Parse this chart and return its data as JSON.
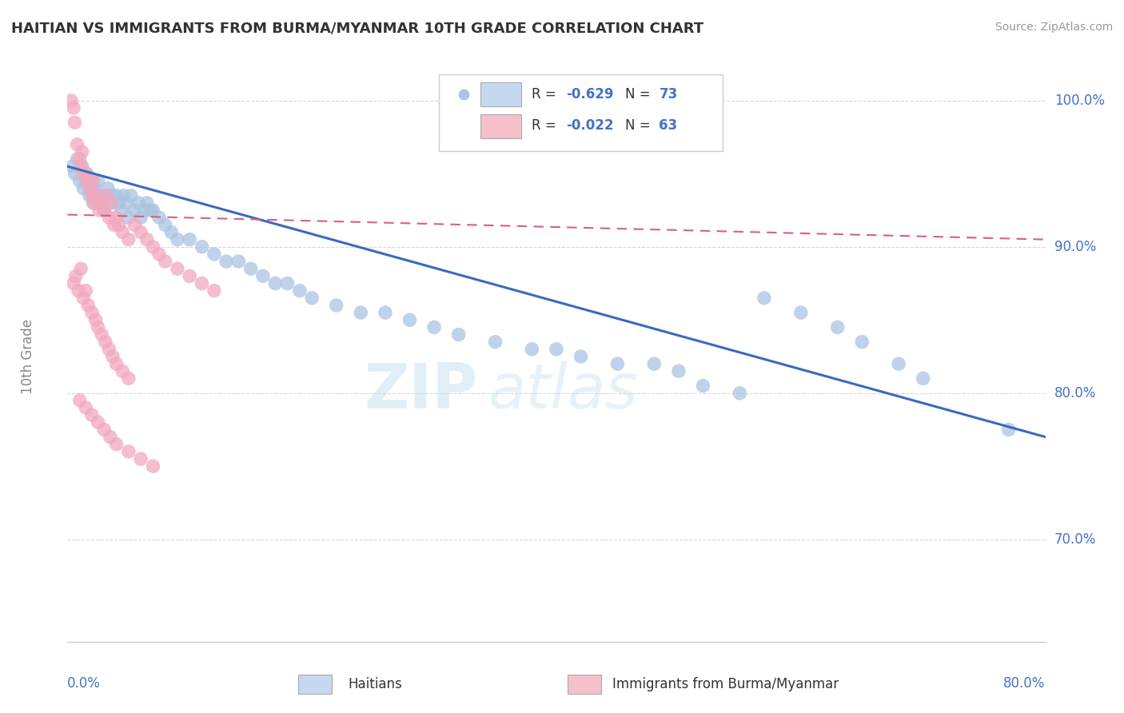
{
  "title": "HAITIAN VS IMMIGRANTS FROM BURMA/MYANMAR 10TH GRADE CORRELATION CHART",
  "source": "Source: ZipAtlas.com",
  "ylabel": "10th Grade",
  "y_ticks": [
    70.0,
    80.0,
    90.0,
    100.0
  ],
  "x_min": 0.0,
  "x_max": 80.0,
  "y_min": 63.0,
  "y_max": 102.0,
  "blue_color": "#aac4e2",
  "pink_color": "#f2a8bc",
  "blue_line_color": "#3a6abf",
  "pink_line_color": "#d9607a",
  "blue_R": -0.629,
  "blue_N": 73,
  "pink_R": -0.022,
  "pink_N": 63,
  "watermark_zip": "ZIP",
  "watermark_atlas": "atlas",
  "background_color": "#ffffff",
  "grid_color": "#d8d8d8",
  "text_color": "#4472c4",
  "blue_line_x0": 0.0,
  "blue_line_y0": 95.5,
  "blue_line_x1": 80.0,
  "blue_line_y1": 77.0,
  "pink_line_x0": 0.0,
  "pink_line_y0": 92.2,
  "pink_line_x1": 80.0,
  "pink_line_y1": 90.5,
  "blue_scatter_x": [
    0.4,
    0.6,
    0.8,
    1.0,
    1.2,
    1.3,
    1.5,
    1.6,
    1.8,
    1.9,
    2.0,
    2.1,
    2.2,
    2.4,
    2.5,
    2.6,
    2.8,
    3.0,
    3.2,
    3.3,
    3.5,
    3.7,
    4.0,
    4.2,
    4.4,
    4.6,
    4.8,
    5.0,
    5.2,
    5.5,
    5.8,
    6.0,
    6.3,
    6.5,
    6.8,
    7.0,
    7.5,
    8.0,
    8.5,
    9.0,
    10.0,
    11.0,
    12.0,
    13.0,
    14.0,
    15.0,
    16.0,
    17.0,
    18.0,
    19.0,
    20.0,
    22.0,
    24.0,
    26.0,
    28.0,
    30.0,
    32.0,
    35.0,
    38.0,
    40.0,
    42.0,
    45.0,
    48.0,
    50.0,
    52.0,
    55.0,
    57.0,
    60.0,
    63.0,
    65.0,
    68.0,
    70.0,
    77.0
  ],
  "blue_scatter_y": [
    95.5,
    95.0,
    96.0,
    94.5,
    95.5,
    94.0,
    94.5,
    95.0,
    93.5,
    94.5,
    94.0,
    93.0,
    94.0,
    93.5,
    94.5,
    93.0,
    93.5,
    92.5,
    93.5,
    94.0,
    93.0,
    93.5,
    93.5,
    93.0,
    92.5,
    93.5,
    93.0,
    92.0,
    93.5,
    92.5,
    93.0,
    92.0,
    92.5,
    93.0,
    92.5,
    92.5,
    92.0,
    91.5,
    91.0,
    90.5,
    90.5,
    90.0,
    89.5,
    89.0,
    89.0,
    88.5,
    88.0,
    87.5,
    87.5,
    87.0,
    86.5,
    86.0,
    85.5,
    85.5,
    85.0,
    84.5,
    84.0,
    83.5,
    83.0,
    83.0,
    82.5,
    82.0,
    82.0,
    81.5,
    80.5,
    80.0,
    86.5,
    85.5,
    84.5,
    83.5,
    82.0,
    81.0,
    77.5
  ],
  "pink_scatter_x": [
    0.3,
    0.5,
    0.6,
    0.8,
    1.0,
    1.1,
    1.2,
    1.3,
    1.5,
    1.6,
    1.8,
    2.0,
    2.1,
    2.2,
    2.4,
    2.6,
    2.8,
    3.0,
    3.2,
    3.4,
    3.6,
    3.8,
    4.0,
    4.2,
    4.5,
    5.0,
    5.5,
    6.0,
    6.5,
    7.0,
    7.5,
    8.0,
    9.0,
    10.0,
    11.0,
    12.0,
    0.5,
    0.7,
    0.9,
    1.1,
    1.3,
    1.5,
    1.7,
    2.0,
    2.3,
    2.5,
    2.8,
    3.1,
    3.4,
    3.7,
    4.0,
    4.5,
    5.0,
    1.0,
    1.5,
    2.0,
    2.5,
    3.0,
    3.5,
    4.0,
    5.0,
    6.0,
    7.0
  ],
  "pink_scatter_y": [
    100.0,
    99.5,
    98.5,
    97.0,
    96.0,
    95.5,
    96.5,
    95.0,
    95.0,
    94.5,
    94.0,
    93.5,
    94.5,
    93.0,
    93.5,
    92.5,
    93.0,
    92.5,
    93.5,
    92.0,
    93.0,
    91.5,
    92.0,
    91.5,
    91.0,
    90.5,
    91.5,
    91.0,
    90.5,
    90.0,
    89.5,
    89.0,
    88.5,
    88.0,
    87.5,
    87.0,
    87.5,
    88.0,
    87.0,
    88.5,
    86.5,
    87.0,
    86.0,
    85.5,
    85.0,
    84.5,
    84.0,
    83.5,
    83.0,
    82.5,
    82.0,
    81.5,
    81.0,
    79.5,
    79.0,
    78.5,
    78.0,
    77.5,
    77.0,
    76.5,
    76.0,
    75.5,
    75.0
  ]
}
